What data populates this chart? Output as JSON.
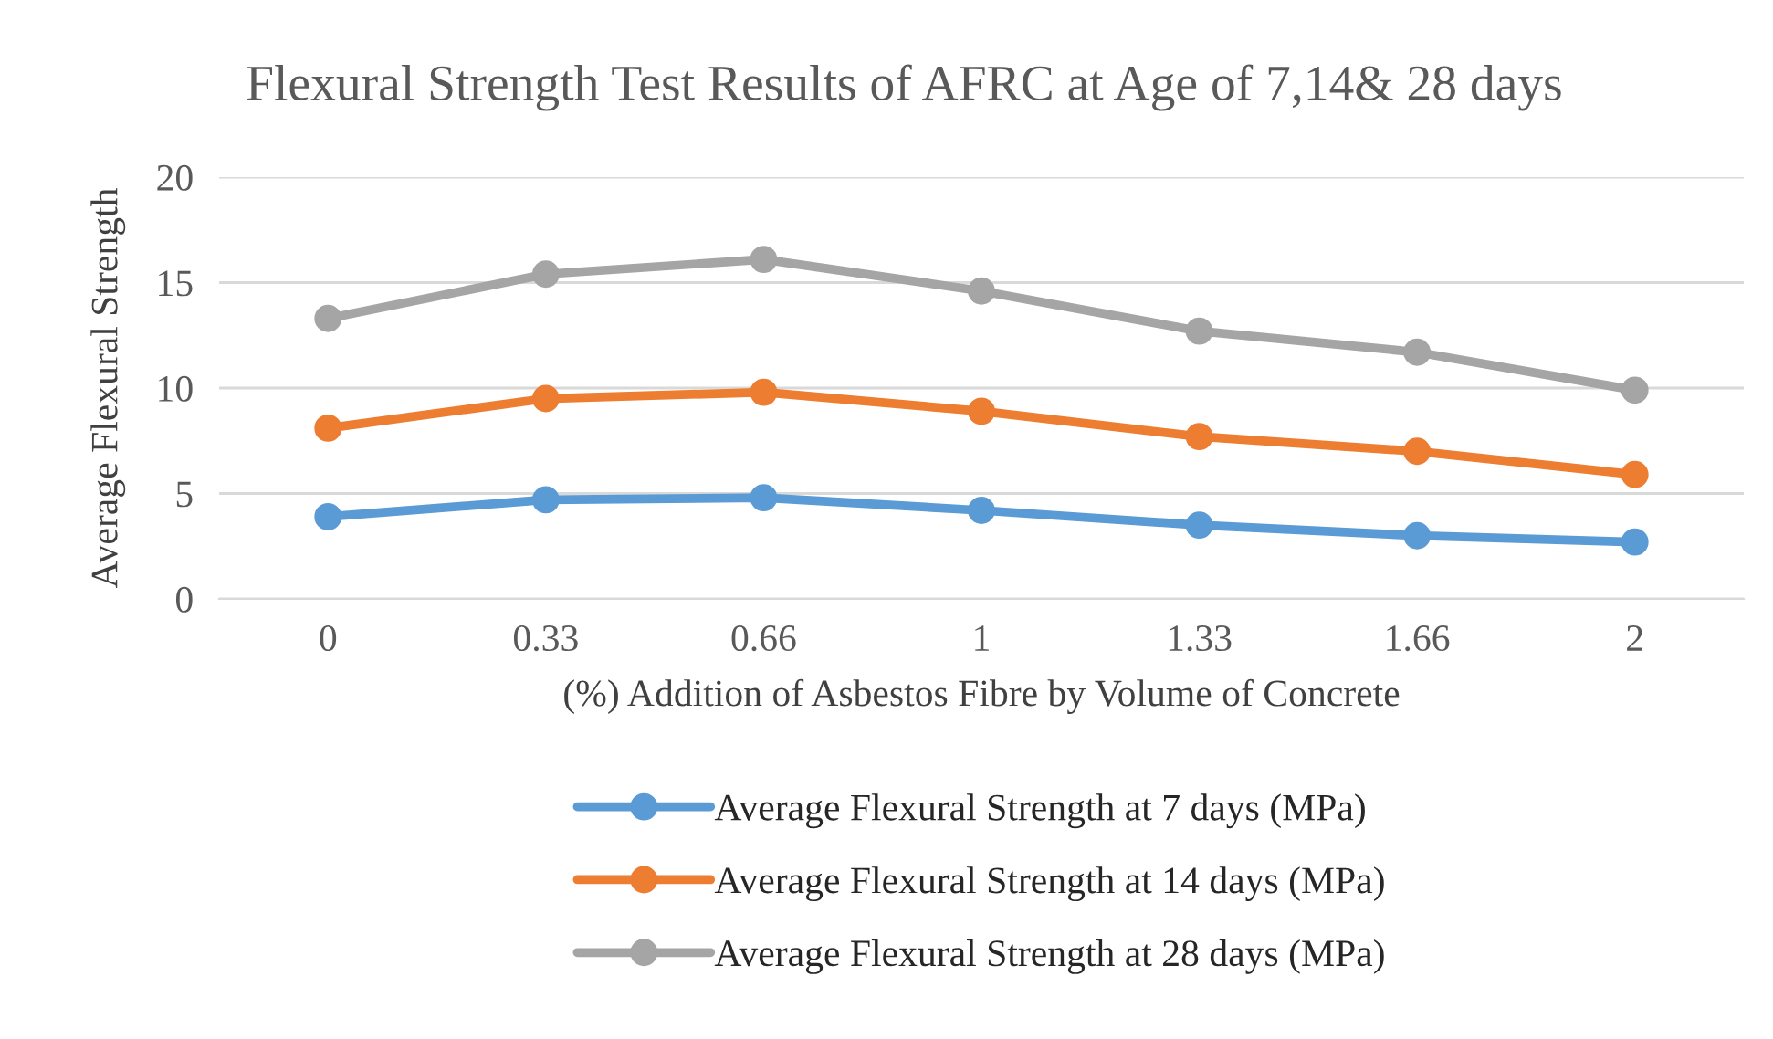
{
  "chart_data": {
    "type": "line",
    "title": "Flexural Strength Test Results of AFRC at Age of 7,14& 28 days",
    "xlabel": "(%) Addition of Asbestos Fibre by Volume of Concrete",
    "ylabel": "Average Flexural Strength",
    "categories": [
      "0",
      "0.33",
      "0.66",
      "1",
      "1.33",
      "1.66",
      "2"
    ],
    "series": [
      {
        "name": "Average Flexural Strength at 7 days (MPa)",
        "color": "#5b9bd5",
        "values": [
          3.9,
          4.7,
          4.8,
          4.2,
          3.5,
          3.0,
          2.7
        ]
      },
      {
        "name": "Average Flexural Strength at 14 days (MPa)",
        "color": "#ed7d31",
        "values": [
          8.1,
          9.5,
          9.8,
          8.9,
          7.7,
          7.0,
          5.9
        ]
      },
      {
        "name": "Average Flexural Strength at 28 days (MPa)",
        "color": "#a5a5a5",
        "values": [
          13.3,
          15.4,
          16.1,
          14.6,
          12.7,
          11.7,
          9.9
        ]
      }
    ],
    "ylim": [
      0,
      20
    ],
    "yticks": [
      0,
      5,
      10,
      15,
      20
    ],
    "grid": "y",
    "legend": "bottom",
    "marker": "circle",
    "line_style": "solid"
  }
}
